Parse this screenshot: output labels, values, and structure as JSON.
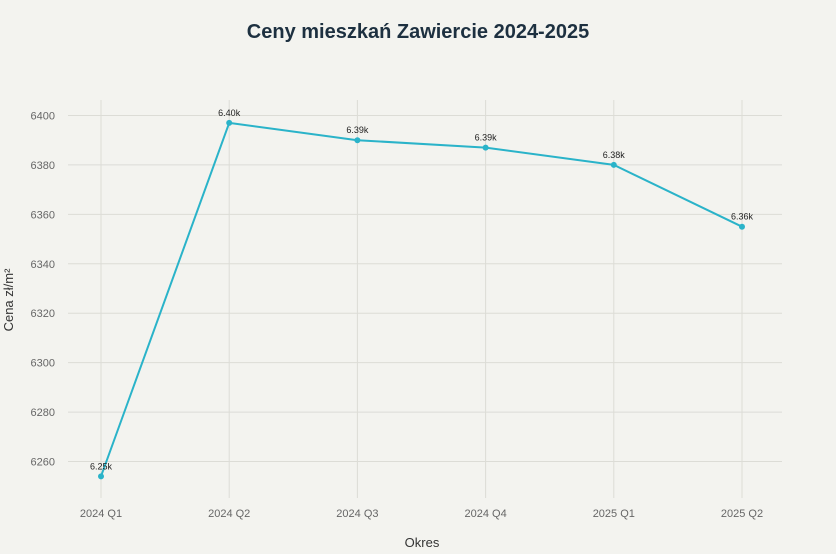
{
  "chart_data": {
    "type": "line",
    "title": "Ceny mieszkań Zawiercie 2024-2025",
    "xlabel": "Okres",
    "ylabel": "Cena zł/m²",
    "categories": [
      "2024 Q1",
      "2024 Q2",
      "2024 Q3",
      "2024 Q4",
      "2025 Q1",
      "2025 Q2"
    ],
    "series": [
      {
        "values": [
          6254,
          6397,
          6390,
          6387,
          6380,
          6355
        ],
        "data_labels": [
          "6.25k",
          "6.40k",
          "6.39k",
          "6.39k",
          "6.38k",
          "6.36k"
        ],
        "color": "#2ab3c9"
      }
    ],
    "yticks": [
      6260,
      6280,
      6300,
      6320,
      6340,
      6360,
      6380,
      6400
    ],
    "ylim": [
      6246,
      6406
    ],
    "grid": true,
    "background": "#f3f3ef"
  }
}
